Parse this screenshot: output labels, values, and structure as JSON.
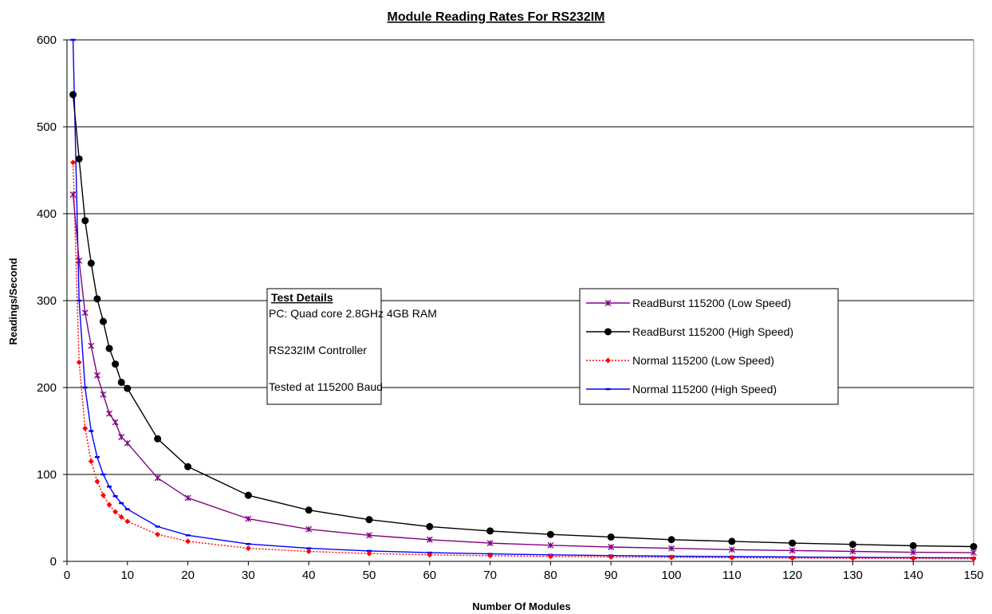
{
  "chart_data": {
    "type": "line",
    "title": "Module Reading Rates For RS232IM",
    "xlabel": "Number Of Modules",
    "ylabel": "Readings/Second",
    "xlim": [
      0,
      150
    ],
    "ylim": [
      0,
      600
    ],
    "x_ticks": [
      0,
      10,
      20,
      30,
      40,
      50,
      60,
      70,
      80,
      90,
      100,
      110,
      120,
      130,
      140,
      150
    ],
    "y_ticks": [
      0,
      100,
      200,
      300,
      400,
      500,
      600
    ],
    "grid": "horizontal",
    "legend_position": "right-middle",
    "x": [
      1,
      2,
      3,
      4,
      5,
      6,
      7,
      8,
      9,
      10,
      15,
      20,
      30,
      40,
      50,
      60,
      70,
      80,
      90,
      100,
      110,
      120,
      130,
      140,
      150
    ],
    "series": [
      {
        "name": "ReadBurst 115200 (Low Speed)",
        "color": "#800080",
        "marker": "asterisk",
        "line": "solid",
        "values": [
          422,
          346,
          286,
          248,
          214,
          192,
          170,
          160,
          143,
          136,
          96,
          73,
          49,
          37,
          30,
          25,
          21,
          18.5,
          16.5,
          15,
          13.5,
          12.5,
          11.5,
          10.5,
          10
        ]
      },
      {
        "name": "ReadBurst 115200 (High Speed)",
        "color": "#000000",
        "marker": "circle",
        "line": "solid",
        "values": [
          537,
          463,
          392,
          343,
          302,
          276,
          245,
          227,
          206,
          199,
          141,
          109,
          76,
          59,
          48,
          40,
          35,
          31,
          28,
          25,
          23,
          21,
          19.5,
          18,
          17
        ]
      },
      {
        "name": "Normal 115200 (Low Speed)",
        "color": "#ff0000",
        "marker": "diamond",
        "line": "dotted",
        "values": [
          459,
          229,
          153,
          115,
          92,
          76,
          65,
          57,
          51,
          46,
          31,
          23,
          15,
          11.5,
          9,
          7.5,
          6.5,
          5.7,
          5,
          4.6,
          4.2,
          3.8,
          3.5,
          3.3,
          3
        ]
      },
      {
        "name": "Normal 115200 (High Speed)",
        "color": "#0000ff",
        "marker": "dash",
        "line": "solid",
        "values": [
          600,
          300,
          200,
          150,
          120,
          100,
          86,
          75,
          67,
          60,
          40,
          30,
          20,
          15,
          12,
          10,
          8.6,
          7.5,
          6.7,
          6,
          5.5,
          5,
          4.6,
          4.3,
          4
        ]
      }
    ],
    "annotation": {
      "heading": "Test Details",
      "lines": [
        "PC:  Quad core 2.8GHz 4GB RAM",
        "RS232IM Controller",
        "Tested at 115200 Baud"
      ]
    }
  }
}
